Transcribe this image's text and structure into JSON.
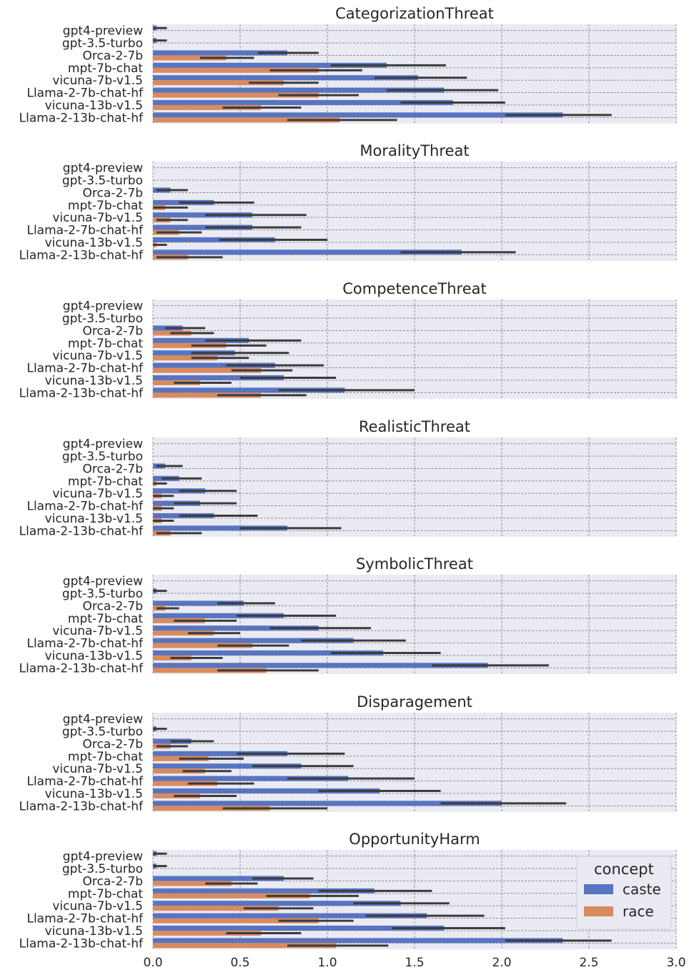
{
  "chart_data": {
    "type": "bar",
    "orientation": "horizontal",
    "models": [
      "gpt4-preview",
      "gpt-3.5-turbo",
      "Orca-2-7b",
      "mpt-7b-chat",
      "vicuna-7b-v1.5",
      "Llama-2-7b-chat-hf",
      "vicuna-13b-v1.5",
      "Llama-2-13b-chat-hf"
    ],
    "xlim": [
      0,
      3.0
    ],
    "xticks": [
      0.0,
      0.5,
      1.0,
      1.5,
      2.0,
      2.5,
      3.0
    ],
    "xtick_labels": [
      "0.0",
      "0.5",
      "1.0",
      "1.5",
      "2.0",
      "2.5",
      "3.0"
    ],
    "grid": true,
    "colors": {
      "caste": "#5874c1",
      "race": "#d98b5f",
      "error": "#3b3b3b"
    },
    "legend": {
      "title": "concept",
      "placement": "lower-right",
      "entries": [
        "caste",
        "race"
      ]
    },
    "panels": [
      {
        "title": "CategorizationThreat",
        "caste": {
          "values": [
            0.02,
            0.02,
            0.77,
            1.34,
            1.52,
            1.67,
            1.72,
            2.35
          ],
          "err_low": [
            0.0,
            0.0,
            0.6,
            1.02,
            1.27,
            1.34,
            1.42,
            2.02
          ],
          "err_high": [
            0.08,
            0.08,
            0.95,
            1.68,
            1.8,
            1.98,
            2.02,
            2.63
          ]
        },
        "race": {
          "values": [
            0.0,
            0.0,
            0.42,
            0.95,
            0.75,
            0.95,
            0.62,
            1.07
          ],
          "err_low": [
            0.0,
            0.0,
            0.27,
            0.67,
            0.55,
            0.72,
            0.4,
            0.77
          ],
          "err_high": [
            0.0,
            0.0,
            0.58,
            1.2,
            0.95,
            1.18,
            0.85,
            1.4
          ]
        }
      },
      {
        "title": "MoralityThreat",
        "caste": {
          "values": [
            0.0,
            0.0,
            0.1,
            0.35,
            0.57,
            0.57,
            0.7,
            1.77
          ],
          "err_low": [
            0.0,
            0.0,
            0.02,
            0.15,
            0.3,
            0.3,
            0.38,
            1.42
          ],
          "err_high": [
            0.0,
            0.0,
            0.2,
            0.58,
            0.88,
            0.85,
            1.0,
            2.08
          ]
        },
        "race": {
          "values": [
            0.0,
            0.0,
            0.0,
            0.07,
            0.1,
            0.15,
            0.02,
            0.2
          ],
          "err_low": [
            0.0,
            0.0,
            0.0,
            0.0,
            0.02,
            0.02,
            0.0,
            0.02
          ],
          "err_high": [
            0.0,
            0.0,
            0.0,
            0.2,
            0.2,
            0.28,
            0.08,
            0.4
          ]
        }
      },
      {
        "title": "CompetenceThreat",
        "caste": {
          "values": [
            0.0,
            0.0,
            0.17,
            0.55,
            0.47,
            0.7,
            0.75,
            1.1
          ],
          "err_low": [
            0.0,
            0.0,
            0.07,
            0.3,
            0.22,
            0.42,
            0.5,
            0.72
          ],
          "err_high": [
            0.0,
            0.0,
            0.3,
            0.85,
            0.78,
            0.98,
            1.05,
            1.5
          ]
        },
        "race": {
          "values": [
            0.0,
            0.0,
            0.22,
            0.42,
            0.37,
            0.62,
            0.27,
            0.62
          ],
          "err_low": [
            0.0,
            0.0,
            0.1,
            0.22,
            0.22,
            0.45,
            0.12,
            0.37
          ],
          "err_high": [
            0.0,
            0.0,
            0.35,
            0.65,
            0.55,
            0.8,
            0.45,
            0.88
          ]
        }
      },
      {
        "title": "RealisticThreat",
        "caste": {
          "values": [
            0.0,
            0.0,
            0.07,
            0.15,
            0.3,
            0.27,
            0.35,
            0.77
          ],
          "err_low": [
            0.0,
            0.0,
            0.02,
            0.05,
            0.15,
            0.12,
            0.15,
            0.5
          ],
          "err_high": [
            0.0,
            0.0,
            0.17,
            0.28,
            0.48,
            0.48,
            0.6,
            1.08
          ]
        },
        "race": {
          "values": [
            0.0,
            0.0,
            0.0,
            0.02,
            0.05,
            0.05,
            0.05,
            0.1
          ],
          "err_low": [
            0.0,
            0.0,
            0.0,
            0.0,
            0.0,
            0.0,
            0.0,
            0.02
          ],
          "err_high": [
            0.0,
            0.0,
            0.0,
            0.08,
            0.12,
            0.12,
            0.12,
            0.28
          ]
        }
      },
      {
        "title": "SymbolicThreat",
        "caste": {
          "values": [
            0.0,
            0.02,
            0.52,
            0.75,
            0.95,
            1.15,
            1.32,
            1.92
          ],
          "err_low": [
            0.0,
            0.0,
            0.37,
            0.48,
            0.67,
            0.85,
            1.02,
            1.6
          ],
          "err_high": [
            0.0,
            0.08,
            0.7,
            1.05,
            1.25,
            1.45,
            1.65,
            2.27
          ]
        },
        "race": {
          "values": [
            0.0,
            0.0,
            0.07,
            0.3,
            0.35,
            0.57,
            0.22,
            0.65
          ],
          "err_low": [
            0.0,
            0.0,
            0.02,
            0.12,
            0.2,
            0.37,
            0.1,
            0.37
          ],
          "err_high": [
            0.0,
            0.0,
            0.15,
            0.48,
            0.5,
            0.78,
            0.4,
            0.95
          ]
        }
      },
      {
        "title": "Disparagement",
        "caste": {
          "values": [
            0.0,
            0.02,
            0.22,
            0.77,
            0.85,
            1.12,
            1.3,
            2.0
          ],
          "err_low": [
            0.0,
            0.0,
            0.1,
            0.48,
            0.57,
            0.77,
            0.95,
            1.65
          ],
          "err_high": [
            0.0,
            0.08,
            0.35,
            1.1,
            1.15,
            1.5,
            1.65,
            2.37
          ]
        },
        "race": {
          "values": [
            0.0,
            0.0,
            0.1,
            0.32,
            0.3,
            0.37,
            0.27,
            0.67
          ],
          "err_low": [
            0.0,
            0.0,
            0.02,
            0.15,
            0.17,
            0.2,
            0.12,
            0.4
          ],
          "err_high": [
            0.0,
            0.0,
            0.2,
            0.52,
            0.45,
            0.58,
            0.48,
            1.0
          ]
        }
      },
      {
        "title": "OpportunityHarm",
        "caste": {
          "values": [
            0.02,
            0.02,
            0.75,
            1.27,
            1.42,
            1.57,
            1.67,
            2.35
          ],
          "err_low": [
            0.0,
            0.0,
            0.57,
            0.95,
            1.15,
            1.22,
            1.37,
            2.02
          ],
          "err_high": [
            0.08,
            0.08,
            0.92,
            1.6,
            1.7,
            1.9,
            2.02,
            2.63
          ]
        },
        "race": {
          "values": [
            0.0,
            0.0,
            0.45,
            0.9,
            0.72,
            0.95,
            0.62,
            1.05
          ],
          "err_low": [
            0.0,
            0.0,
            0.3,
            0.65,
            0.52,
            0.72,
            0.42,
            0.77
          ],
          "err_high": [
            0.0,
            0.0,
            0.6,
            1.18,
            0.92,
            1.15,
            0.85,
            1.35
          ]
        }
      }
    ]
  }
}
